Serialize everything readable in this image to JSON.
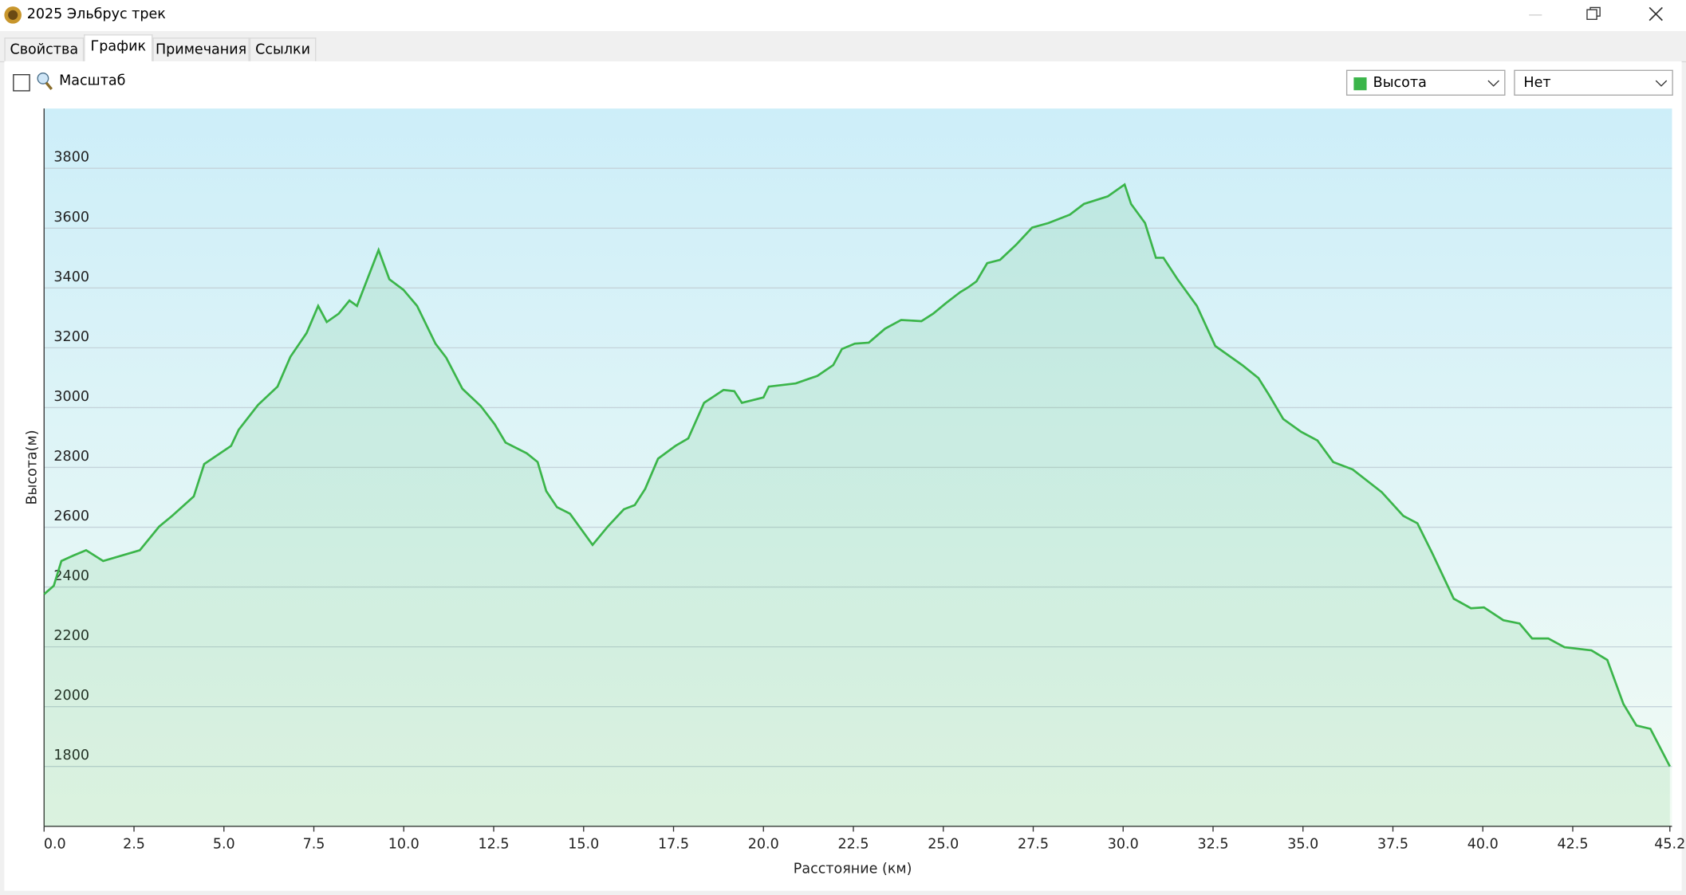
{
  "window": {
    "title": "2025 Эльбрус трек"
  },
  "tabs": [
    "Свойства",
    "График",
    "Примечания",
    "Ссылки"
  ],
  "toolbar": {
    "checkbox_label": "Масштаб",
    "second_select": "Нет"
  },
  "chart_data": {
    "type": "line",
    "x_label": "Расстояние  (км)",
    "y_label": "Высота(м)",
    "x": [
      0,
      0.27,
      0.48,
      0.81,
      1.17,
      1.64,
      2.66,
      3.2,
      3.56,
      4.16,
      4.45,
      5.2,
      5.41,
      5.95,
      6.49,
      6.85,
      7.3,
      7.62,
      7.86,
      8.19,
      8.49,
      8.7,
      9.3,
      9.6,
      9.99,
      10.37,
      10.88,
      11.18,
      11.63,
      12.14,
      12.53,
      12.83,
      13.42,
      13.72,
      13.96,
      14.26,
      14.62,
      15.25,
      15.67,
      16.12,
      16.42,
      16.71,
      17.07,
      17.55,
      17.91,
      18.35,
      18.89,
      19.19,
      19.4,
      20.0,
      20.15,
      20.9,
      21.5,
      21.94,
      22.18,
      22.54,
      22.93,
      23.38,
      23.83,
      24.39,
      24.72,
      25.08,
      25.47,
      25.68,
      25.92,
      26.22,
      26.58,
      27.03,
      27.47,
      27.92,
      28.52,
      28.91,
      29.57,
      30.04,
      30.22,
      30.61,
      30.91,
      31.12,
      31.51,
      32.05,
      32.56,
      33.31,
      33.76,
      34.06,
      34.45,
      34.95,
      35.4,
      35.84,
      36.38,
      37.19,
      37.79,
      38.18,
      38.6,
      39.19,
      39.67,
      40.03,
      40.57,
      41.02,
      41.37,
      41.82,
      42.27,
      43.02,
      43.46,
      43.91,
      44.27,
      44.66,
      45.2
    ],
    "series": [
      {
        "name": "Высота",
        "color": "#3bb54a",
        "values": [
          2376,
          2404,
          2487,
          2505,
          2523,
          2487,
          2523,
          2602,
          2638,
          2703,
          2811,
          2872,
          2926,
          3009,
          3070,
          3170,
          3250,
          3340,
          3286,
          3314,
          3358,
          3340,
          3527,
          3429,
          3394,
          3340,
          3214,
          3167,
          3063,
          3005,
          2944,
          2883,
          2847,
          2818,
          2721,
          2667,
          2645,
          2541,
          2602,
          2660,
          2674,
          2728,
          2829,
          2872,
          2897,
          3016,
          3059,
          3055,
          3016,
          3034,
          3070,
          3081,
          3106,
          3142,
          3196,
          3214,
          3217,
          3264,
          3293,
          3289,
          3314,
          3350,
          3386,
          3401,
          3422,
          3483,
          3494,
          3545,
          3602,
          3617,
          3645,
          3681,
          3706,
          3746,
          3681,
          3617,
          3501,
          3501,
          3429,
          3340,
          3206,
          3142,
          3099,
          3041,
          2962,
          2919,
          2890,
          2818,
          2793,
          2717,
          2638,
          2613,
          2512,
          2361,
          2329,
          2332,
          2289,
          2278,
          2228,
          2228,
          2199,
          2188,
          2156,
          2009,
          1937,
          1926,
          1800
        ]
      }
    ],
    "xlim": [
      0,
      45.2
    ],
    "ylim": [
      1600,
      4000
    ],
    "xticks": [
      {
        "value": 0,
        "label": "0.0"
      },
      2.5,
      {
        "value": 5,
        "label": "5.0"
      },
      7.5,
      {
        "value": 10,
        "label": "10.0"
      },
      12.5,
      {
        "value": 15,
        "label": "15.0"
      },
      17.5,
      {
        "value": 20,
        "label": "20.0"
      },
      22.5,
      {
        "value": 25,
        "label": "25.0"
      },
      27.5,
      {
        "value": 30,
        "label": "30.0"
      },
      32.5,
      {
        "value": 35,
        "label": "35.0"
      },
      37.5,
      {
        "value": 40,
        "label": "40.0"
      },
      42.5,
      45.2
    ],
    "yticks": [
      1800,
      2000,
      2200,
      2400,
      2600,
      2800,
      3000,
      3200,
      3400,
      3600,
      3800
    ],
    "grid": true
  }
}
